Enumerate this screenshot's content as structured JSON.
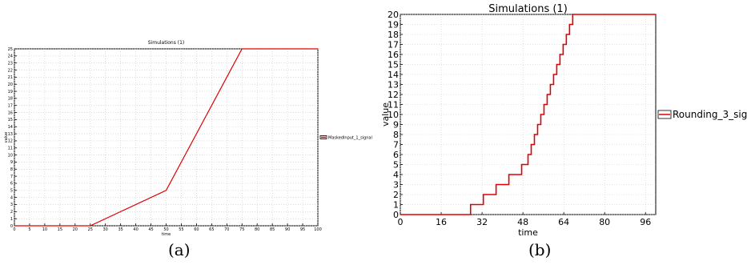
{
  "figure": {
    "panel_captions": [
      "(a)",
      "(b)"
    ]
  },
  "chart_data": [
    {
      "type": "line",
      "title": "Simulations (1)",
      "xlabel": "time",
      "ylabel": "value",
      "xlim": [
        0,
        100
      ],
      "ylim": [
        0,
        25
      ],
      "xticks": [
        0,
        5,
        10,
        15,
        20,
        25,
        30,
        35,
        40,
        45,
        50,
        55,
        60,
        65,
        70,
        75,
        80,
        85,
        90,
        95,
        100
      ],
      "yticks": [
        0,
        1,
        2,
        3,
        4,
        5,
        6,
        7,
        8,
        9,
        10,
        11,
        12,
        13,
        14,
        15,
        16,
        17,
        18,
        19,
        20,
        21,
        22,
        23,
        24,
        25
      ],
      "grid": true,
      "legend": "right",
      "series": [
        {
          "name": "MaskedInput_1_signal",
          "color": "#e00000",
          "x": [
            0,
            25,
            50,
            75,
            100
          ],
          "y": [
            0,
            0,
            5,
            25,
            25
          ]
        }
      ]
    },
    {
      "type": "line",
      "title": "Simulations (1)",
      "xlabel": "time",
      "ylabel": "value",
      "xlim": [
        0,
        100
      ],
      "ylim": [
        0,
        20
      ],
      "xticks": [
        0,
        16,
        32,
        48,
        64,
        80,
        96
      ],
      "yticks": [
        0,
        1,
        2,
        3,
        4,
        5,
        6,
        7,
        8,
        9,
        10,
        11,
        12,
        13,
        14,
        15,
        16,
        17,
        18,
        19,
        20
      ],
      "grid": true,
      "legend": "right",
      "series": [
        {
          "name": "Rounding_3_signal",
          "color": "#e00000",
          "step": "post",
          "x": [
            0,
            27.5,
            32.5,
            37.5,
            42.5,
            47.5,
            50,
            51.25,
            52.5,
            53.75,
            55,
            56.25,
            57.5,
            58.75,
            60,
            61.25,
            62.5,
            63.75,
            65,
            66.25,
            67.5,
            68.75,
            100
          ],
          "y": [
            0,
            1,
            2,
            3,
            4,
            5,
            6,
            7,
            8,
            9,
            10,
            11,
            12,
            13,
            14,
            15,
            16,
            17,
            18,
            19,
            20,
            20,
            20
          ]
        }
      ]
    }
  ]
}
